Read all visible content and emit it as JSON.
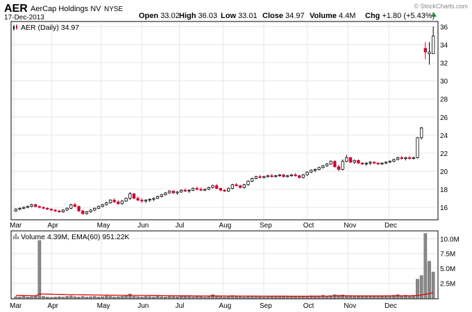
{
  "header": {
    "symbol": "AER",
    "company": "AerCap Holdings NV",
    "exchange": "NYSE",
    "date": "17-Dec-2013",
    "watermark": "© StockCharts.com",
    "quote": {
      "open_label": "Open",
      "open": "33.02",
      "high_label": "High",
      "high": "36.03",
      "low_label": "Low",
      "low": "33.01",
      "close_label": "Close",
      "close": "34.97",
      "volume_label": "Volume",
      "volume": "4.4M",
      "chg_label": "Chg",
      "chg": "+1.80 (+5.43%)"
    },
    "up_arrow_icon": "triangle-up-icon"
  },
  "colors": {
    "up": "#000000",
    "down": "#cc0033",
    "ema_line": "#e00000",
    "volume_bar": "#888888",
    "grid": "#e6e6e6",
    "frame": "#000000"
  },
  "price_panel": {
    "legend_text": "AER (Daily) 34.97",
    "legend_icon": "candlestick-icon"
  },
  "volume_panel": {
    "legend_text": "Volume 4.39M, EMA(60) 951.22K",
    "legend_icon": "volume-bars-icon"
  },
  "chart_data": [
    {
      "type": "candlestick",
      "title": "AER (Daily) 34.97",
      "x_tick_labels": [
        "Mar",
        "Apr",
        "May",
        "Jun",
        "Jul",
        "Aug",
        "Sep",
        "Oct",
        "Nov",
        "Dec"
      ],
      "y_tick_labels": [
        "16",
        "18",
        "20",
        "22",
        "24",
        "26",
        "28",
        "30",
        "32",
        "34",
        "36"
      ],
      "ylim": [
        14.7,
        36.5
      ],
      "grid": true,
      "series": [
        {
          "name": "AER",
          "values": [
            [
              15.6,
              15.9,
              15.5,
              15.8
            ],
            [
              15.8,
              16.0,
              15.7,
              15.9
            ],
            [
              15.9,
              16.1,
              15.8,
              16.0
            ],
            [
              16.0,
              16.2,
              15.9,
              16.1
            ],
            [
              16.1,
              16.4,
              16.0,
              16.3
            ],
            [
              16.3,
              16.4,
              16.0,
              16.1
            ],
            [
              16.1,
              16.2,
              15.9,
              16.0
            ],
            [
              16.0,
              16.1,
              15.8,
              15.9
            ],
            [
              15.9,
              16.0,
              15.7,
              15.8
            ],
            [
              15.8,
              15.9,
              15.6,
              15.7
            ],
            [
              15.7,
              15.8,
              15.5,
              15.6
            ],
            [
              15.6,
              15.7,
              15.4,
              15.5
            ],
            [
              15.5,
              15.8,
              15.4,
              15.7
            ],
            [
              15.7,
              16.0,
              15.6,
              15.9
            ],
            [
              15.9,
              16.4,
              15.8,
              16.3
            ],
            [
              16.3,
              16.5,
              16.0,
              16.1
            ],
            [
              16.1,
              16.2,
              15.5,
              15.6
            ],
            [
              15.6,
              15.7,
              15.2,
              15.3
            ],
            [
              15.3,
              15.6,
              15.2,
              15.5
            ],
            [
              15.5,
              15.8,
              15.4,
              15.7
            ],
            [
              15.7,
              16.0,
              15.6,
              15.9
            ],
            [
              15.9,
              16.2,
              15.8,
              16.1
            ],
            [
              16.1,
              16.4,
              16.0,
              16.3
            ],
            [
              16.3,
              16.6,
              16.2,
              16.5
            ],
            [
              16.5,
              16.9,
              16.4,
              16.8
            ],
            [
              16.8,
              17.0,
              16.5,
              16.6
            ],
            [
              16.6,
              16.8,
              16.3,
              16.4
            ],
            [
              16.4,
              16.8,
              16.3,
              16.7
            ],
            [
              16.7,
              17.1,
              16.6,
              17.0
            ],
            [
              17.0,
              17.7,
              16.8,
              17.5
            ],
            [
              17.5,
              17.6,
              16.9,
              17.0
            ],
            [
              17.0,
              17.2,
              16.7,
              16.8
            ],
            [
              16.8,
              17.0,
              16.5,
              16.7
            ],
            [
              16.7,
              16.9,
              16.5,
              16.8
            ],
            [
              16.8,
              17.0,
              16.6,
              16.9
            ],
            [
              16.9,
              17.1,
              16.7,
              17.0
            ],
            [
              17.0,
              17.3,
              16.9,
              17.2
            ],
            [
              17.2,
              17.5,
              17.1,
              17.4
            ],
            [
              17.4,
              17.7,
              17.3,
              17.6
            ],
            [
              17.6,
              17.9,
              17.5,
              17.8
            ],
            [
              17.8,
              17.9,
              17.5,
              17.6
            ],
            [
              17.6,
              17.8,
              17.4,
              17.7
            ],
            [
              17.7,
              18.0,
              17.6,
              17.9
            ],
            [
              17.9,
              18.1,
              17.7,
              17.8
            ],
            [
              17.8,
              18.0,
              17.6,
              17.9
            ],
            [
              17.9,
              18.2,
              17.8,
              18.1
            ],
            [
              18.1,
              18.3,
              17.9,
              18.0
            ],
            [
              18.0,
              18.2,
              17.8,
              17.9
            ],
            [
              17.9,
              18.1,
              17.8,
              18.0
            ],
            [
              18.0,
              18.3,
              17.9,
              18.2
            ],
            [
              18.2,
              18.5,
              18.1,
              18.4
            ],
            [
              18.4,
              18.6,
              18.0,
              18.1
            ],
            [
              18.1,
              18.2,
              17.8,
              17.9
            ],
            [
              17.9,
              18.0,
              17.7,
              17.8
            ],
            [
              17.8,
              18.2,
              17.7,
              18.1
            ],
            [
              18.1,
              18.6,
              18.0,
              18.5
            ],
            [
              18.5,
              18.7,
              18.3,
              18.4
            ],
            [
              18.4,
              18.5,
              18.1,
              18.2
            ],
            [
              18.2,
              18.6,
              18.1,
              18.5
            ],
            [
              18.5,
              19.0,
              18.4,
              18.9
            ],
            [
              18.9,
              19.3,
              18.8,
              19.2
            ],
            [
              19.2,
              19.5,
              19.1,
              19.4
            ],
            [
              19.4,
              19.6,
              19.2,
              19.3
            ],
            [
              19.3,
              19.5,
              19.2,
              19.4
            ],
            [
              19.4,
              19.6,
              19.3,
              19.5
            ],
            [
              19.5,
              19.7,
              19.3,
              19.4
            ],
            [
              19.4,
              19.6,
              19.3,
              19.5
            ],
            [
              19.5,
              19.7,
              19.4,
              19.6
            ],
            [
              19.6,
              19.7,
              19.3,
              19.4
            ],
            [
              19.4,
              19.6,
              19.3,
              19.5
            ],
            [
              19.5,
              19.7,
              19.4,
              19.6
            ],
            [
              19.6,
              19.8,
              19.4,
              19.5
            ],
            [
              19.5,
              19.6,
              19.2,
              19.3
            ],
            [
              19.3,
              19.7,
              19.2,
              19.6
            ],
            [
              19.6,
              20.0,
              19.5,
              19.9
            ],
            [
              19.9,
              20.2,
              19.8,
              20.1
            ],
            [
              20.1,
              20.3,
              19.9,
              20.2
            ],
            [
              20.2,
              20.5,
              20.1,
              20.4
            ],
            [
              20.4,
              20.7,
              20.3,
              20.6
            ],
            [
              20.6,
              20.9,
              20.5,
              20.8
            ],
            [
              20.8,
              21.2,
              20.7,
              21.1
            ],
            [
              21.1,
              21.2,
              20.4,
              20.5
            ],
            [
              20.5,
              20.7,
              20.0,
              20.2
            ],
            [
              20.2,
              21.3,
              20.1,
              21.1
            ],
            [
              21.1,
              21.8,
              21.0,
              21.5
            ],
            [
              21.5,
              21.6,
              20.9,
              21.0
            ],
            [
              21.0,
              21.3,
              20.8,
              21.2
            ],
            [
              21.2,
              21.3,
              20.8,
              20.9
            ],
            [
              20.9,
              21.0,
              20.7,
              20.8
            ],
            [
              20.8,
              21.0,
              20.6,
              20.9
            ],
            [
              20.9,
              21.1,
              20.7,
              21.0
            ],
            [
              21.0,
              21.1,
              20.8,
              20.9
            ],
            [
              20.9,
              21.0,
              20.7,
              20.8
            ],
            [
              20.8,
              21.0,
              20.7,
              20.9
            ],
            [
              20.9,
              21.1,
              20.8,
              21.0
            ],
            [
              21.0,
              21.2,
              20.9,
              21.1
            ],
            [
              21.1,
              21.4,
              21.0,
              21.3
            ],
            [
              21.3,
              21.6,
              21.2,
              21.5
            ],
            [
              21.5,
              21.7,
              21.3,
              21.4
            ],
            [
              21.4,
              21.6,
              21.2,
              21.5
            ],
            [
              21.5,
              21.7,
              21.3,
              21.4
            ],
            [
              21.4,
              21.6,
              21.3,
              21.5
            ],
            [
              21.5,
              23.8,
              21.4,
              23.7
            ],
            [
              23.7,
              24.9,
              23.5,
              24.8
            ],
            [
              33.6,
              34.3,
              32.4,
              33.2
            ],
            [
              33.0,
              34.3,
              31.8,
              33.2
            ],
            [
              33.02,
              36.03,
              33.01,
              34.97
            ]
          ]
        }
      ]
    },
    {
      "type": "bar",
      "title": "Volume 4.39M, EMA(60) 951.22K",
      "x_tick_labels": [
        "Mar",
        "Apr",
        "May",
        "Jun",
        "Jul",
        "Aug",
        "Sep",
        "Oct",
        "Nov",
        "Dec"
      ],
      "y_tick_labels": [
        "2.5M",
        "5.0M",
        "7.5M",
        "10.0M"
      ],
      "ylim": [
        0,
        11.2
      ],
      "series": [
        {
          "name": "Volume",
          "values": [
            0.25,
            0.2,
            0.3,
            0.2,
            0.25,
            0.35,
            9.7,
            0.3,
            0.2,
            0.15,
            0.2,
            0.25,
            0.2,
            0.3,
            0.4,
            0.25,
            0.2,
            0.3,
            0.2,
            0.25,
            0.3,
            0.2,
            0.25,
            0.35,
            0.3,
            0.2,
            0.25,
            0.3,
            0.4,
            0.7,
            0.3,
            0.25,
            0.2,
            0.3,
            0.25,
            0.2,
            0.3,
            0.25,
            0.2,
            0.3,
            0.25,
            0.2,
            0.3,
            0.35,
            0.25,
            0.2,
            0.3,
            0.25,
            0.2,
            0.3,
            0.6,
            0.3,
            0.25,
            0.2,
            0.3,
            0.45,
            0.3,
            0.25,
            0.2,
            0.3,
            0.35,
            0.3,
            0.25,
            0.2,
            0.3,
            0.25,
            0.2,
            0.3,
            0.25,
            0.3,
            0.2,
            0.25,
            0.3,
            0.35,
            0.25,
            0.4,
            0.3,
            0.35,
            0.5,
            0.3,
            0.45,
            0.6,
            0.5,
            0.55,
            0.4,
            0.3,
            0.25,
            0.3,
            0.35,
            0.3,
            0.25,
            0.3,
            0.35,
            0.3,
            0.4,
            0.35,
            0.5,
            0.6,
            0.4,
            0.5,
            0.4,
            0.5,
            3.2,
            3.8,
            10.9,
            6.2,
            4.39
          ]
        },
        {
          "name": "EMA(60)",
          "values": [
            0.45,
            0.44,
            0.43,
            0.42,
            0.41,
            0.4,
            0.7,
            0.69,
            0.68,
            0.66,
            0.64,
            0.63,
            0.62,
            0.6,
            0.59,
            0.58,
            0.57,
            0.56,
            0.55,
            0.54,
            0.53,
            0.52,
            0.51,
            0.5,
            0.5,
            0.49,
            0.48,
            0.47,
            0.47,
            0.48,
            0.47,
            0.46,
            0.45,
            0.45,
            0.44,
            0.43,
            0.43,
            0.42,
            0.41,
            0.41,
            0.4,
            0.39,
            0.39,
            0.39,
            0.38,
            0.37,
            0.37,
            0.36,
            0.36,
            0.36,
            0.37,
            0.37,
            0.36,
            0.36,
            0.35,
            0.36,
            0.36,
            0.35,
            0.35,
            0.35,
            0.35,
            0.35,
            0.34,
            0.34,
            0.34,
            0.33,
            0.33,
            0.33,
            0.33,
            0.33,
            0.32,
            0.32,
            0.32,
            0.32,
            0.32,
            0.33,
            0.33,
            0.33,
            0.34,
            0.34,
            0.35,
            0.36,
            0.37,
            0.38,
            0.38,
            0.38,
            0.37,
            0.37,
            0.37,
            0.37,
            0.37,
            0.37,
            0.37,
            0.37,
            0.37,
            0.37,
            0.38,
            0.39,
            0.39,
            0.4,
            0.4,
            0.4,
            0.45,
            0.52,
            0.67,
            0.76,
            0.95
          ]
        }
      ]
    }
  ]
}
